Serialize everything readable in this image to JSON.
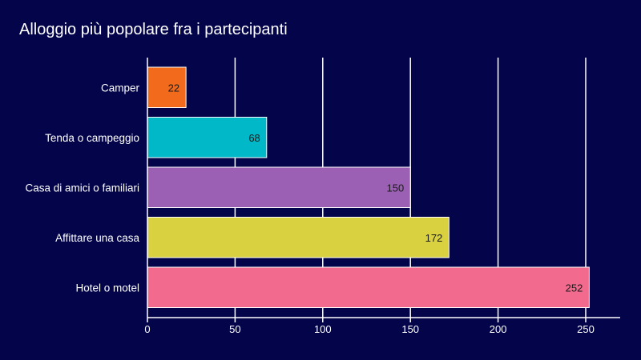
{
  "colors": {
    "background": "#03044a",
    "text": "#ffffff",
    "grid": "#ffffff",
    "data_label": "#1a1a1a"
  },
  "chart_data": {
    "type": "bar",
    "orientation": "horizontal",
    "title": "Alloggio più popolare fra i partecipanti",
    "xlabel": "",
    "ylabel": "",
    "categories": [
      "Camper",
      "Tenda o campeggio",
      "Casa di amici o familiari",
      "Affittare una casa",
      "Hotel o motel"
    ],
    "values": [
      22,
      68,
      150,
      172,
      252
    ],
    "bar_colors": [
      "#f26b1d",
      "#00b8c8",
      "#9b5fb4",
      "#d9d13f",
      "#f26b8f"
    ],
    "xlim": [
      0,
      270
    ],
    "xticks": [
      0,
      50,
      100,
      150,
      200,
      250
    ],
    "grid": true,
    "legend": "none",
    "data_labels": true
  }
}
